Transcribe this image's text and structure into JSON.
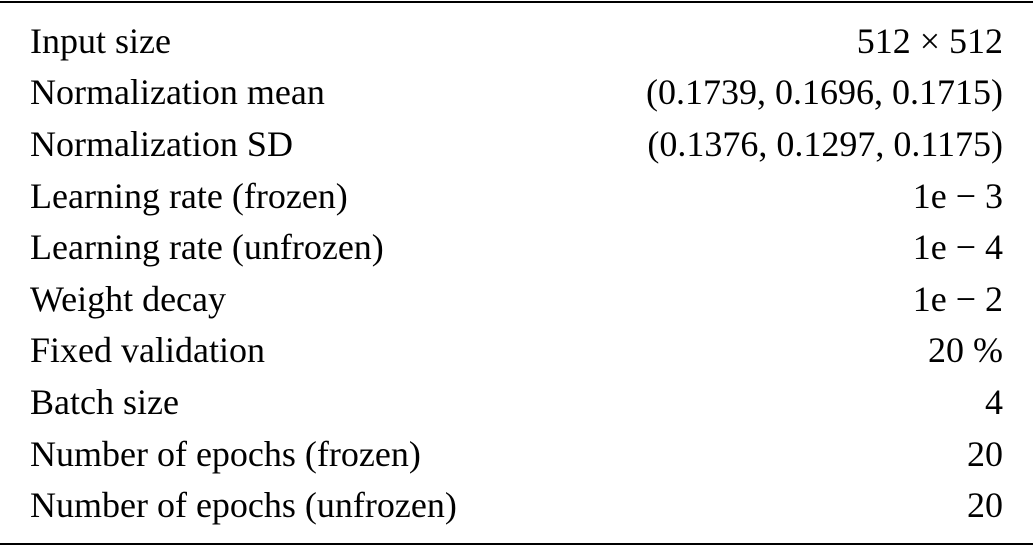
{
  "table": {
    "rows": [
      {
        "label": "Input size",
        "value": "512 × 512"
      },
      {
        "label": "Normalization mean",
        "value": "(0.1739, 0.1696, 0.1715)"
      },
      {
        "label": "Normalization SD",
        "value": "(0.1376, 0.1297, 0.1175)"
      },
      {
        "label": "Learning rate (frozen)",
        "value": "1e − 3"
      },
      {
        "label": "Learning rate (unfrozen)",
        "value": "1e − 4"
      },
      {
        "label": "Weight decay",
        "value": "1e − 2"
      },
      {
        "label": "Fixed validation",
        "value": "20 %"
      },
      {
        "label": "Batch size",
        "value": "4"
      },
      {
        "label": "Number of epochs (frozen)",
        "value": "20"
      },
      {
        "label": "Number of epochs (unfrozen)",
        "value": "20"
      }
    ]
  }
}
